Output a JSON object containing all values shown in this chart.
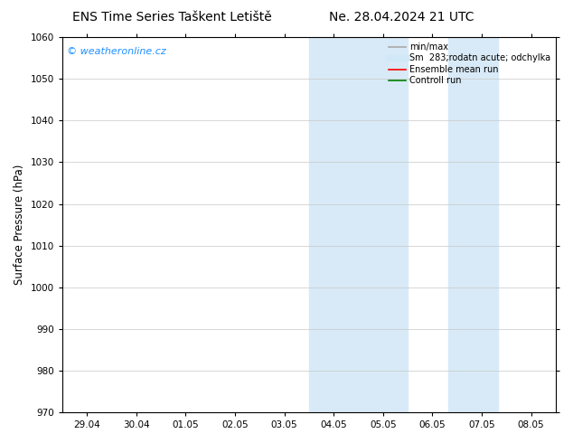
{
  "title_left": "ENS Time Series Taškent Letiště",
  "title_right": "Ne. 28.04.2024 21 UTC",
  "ylabel": "Surface Pressure (hPa)",
  "ylim": [
    970,
    1060
  ],
  "yticks": [
    970,
    980,
    990,
    1000,
    1010,
    1020,
    1030,
    1040,
    1050,
    1060
  ],
  "x_labels": [
    "29.04",
    "30.04",
    "01.05",
    "02.05",
    "03.05",
    "04.05",
    "05.05",
    "06.05",
    "07.05",
    "08.05"
  ],
  "x_positions": [
    0,
    1,
    2,
    3,
    4,
    5,
    6,
    7,
    8,
    9
  ],
  "xlim": [
    -0.5,
    9.5
  ],
  "shaded_bands": [
    {
      "x_start": 4.5,
      "x_end": 5.5,
      "color": "#d8eaf7"
    },
    {
      "x_start": 5.5,
      "x_end": 6.5,
      "color": "#d8eaf7"
    },
    {
      "x_start": 7.33,
      "x_end": 8.33,
      "color": "#d8eaf7"
    }
  ],
  "background_color": "#ffffff",
  "plot_bg_color": "#ffffff",
  "border_color": "#000000",
  "watermark_text": "© weatheronline.cz",
  "watermark_color": "#1e90ff",
  "watermark_fontsize": 8,
  "legend_entries": [
    {
      "label": "min/max",
      "color": "#aaaaaa",
      "lw": 1.2,
      "linestyle": "-"
    },
    {
      "label": "Sm  283;rodatn acute; odchylka",
      "color": "#d0e8f8",
      "lw": 5,
      "linestyle": "-"
    },
    {
      "label": "Ensemble mean run",
      "color": "#ff0000",
      "lw": 1.2,
      "linestyle": "-"
    },
    {
      "label": "Controll run",
      "color": "#008000",
      "lw": 1.2,
      "linestyle": "-"
    }
  ],
  "title_fontsize": 10,
  "tick_labelsize": 7.5,
  "ylabel_fontsize": 8.5,
  "legend_fontsize": 7,
  "grid_color": "#c8c8c8",
  "grid_lw": 0.5
}
